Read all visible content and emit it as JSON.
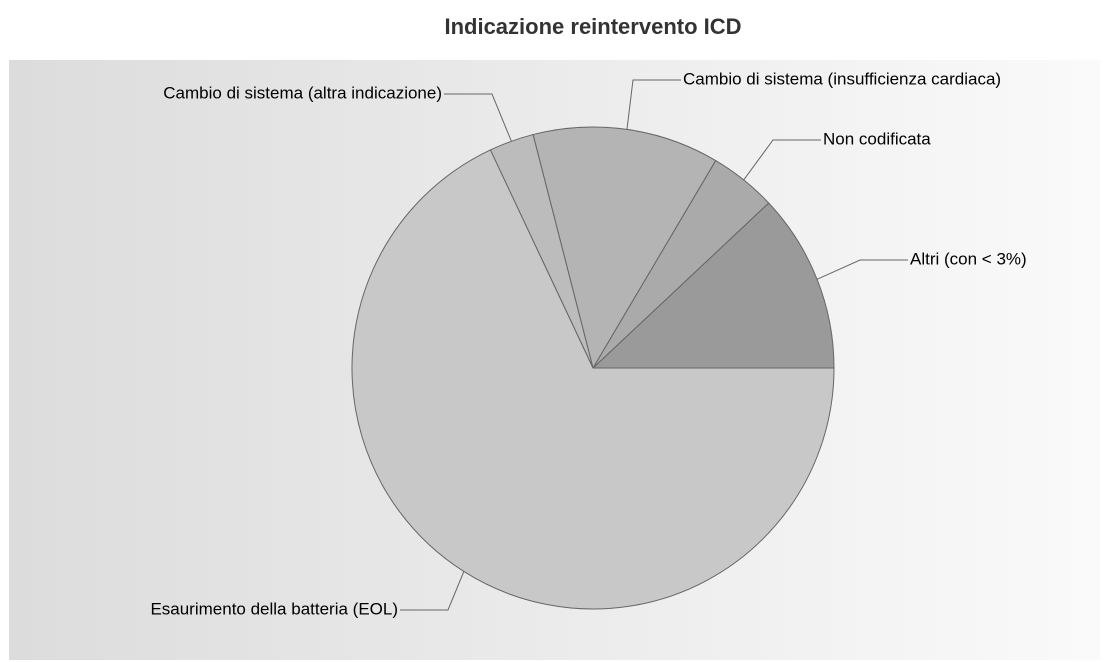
{
  "chart_data": {
    "type": "pie",
    "title": "Indicazione reintervento ICD",
    "categories": [
      "Altri (con < 3%)",
      "Non codificata",
      "Cambio di sistema (insufficienza cardiaca)",
      "Cambio di sistema (altra indicazione)",
      "Esaurimento della batteria (EOL)"
    ],
    "values": [
      12,
      4.5,
      12.5,
      3,
      68
    ],
    "colors": [
      "#9a9a9a",
      "#aaaaaa",
      "#b4b4b4",
      "#bcbcbc",
      "#c8c8c8"
    ]
  }
}
